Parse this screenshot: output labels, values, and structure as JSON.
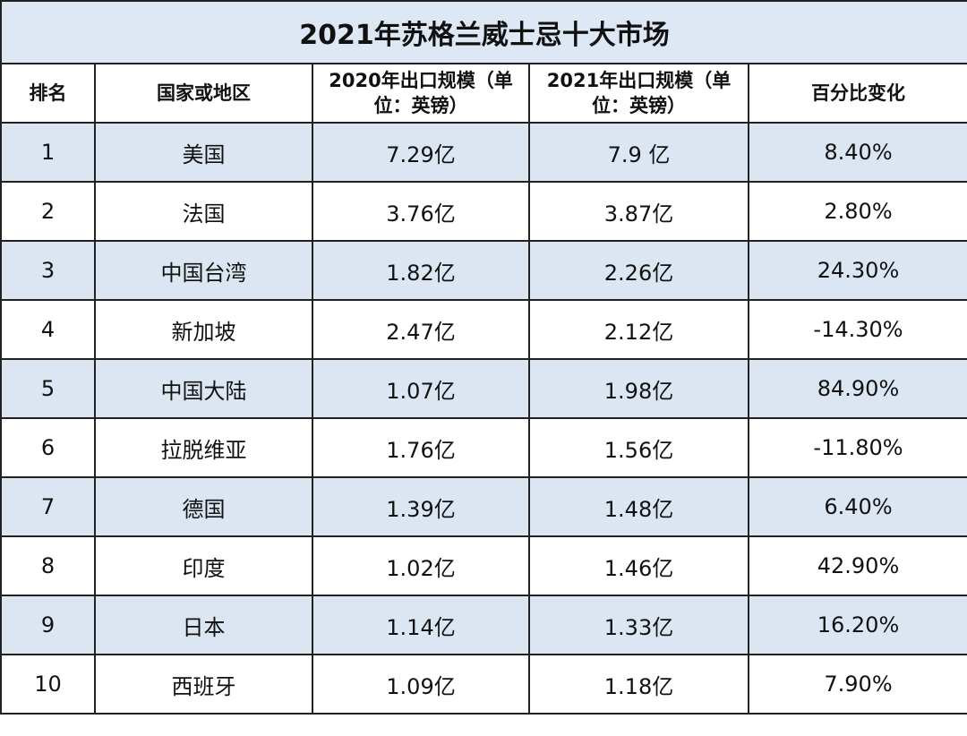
{
  "title": "2021年苏格兰威士忌十大市场",
  "table": {
    "header": [
      "排名",
      "国家或地区",
      "2020年出口规模（单位：英镑）",
      "2021年出口规模（单位：英镑）",
      "百分比变化"
    ],
    "rows": [
      [
        "1",
        "美国",
        "7.29亿",
        "7.9 亿",
        "8.40%"
      ],
      [
        "2",
        "法国",
        "3.76亿",
        "3.87亿",
        "2.80%"
      ],
      [
        "3",
        "中国台湾",
        "1.82亿",
        "2.26亿",
        "24.30%"
      ],
      [
        "4",
        "新加坡",
        "2.47亿",
        "2.12亿",
        "-14.30%"
      ],
      [
        "5",
        "中国大陆",
        "1.07亿",
        "1.98亿",
        "84.90%"
      ],
      [
        "6",
        "拉脱维亚",
        "1.76亿",
        "1.56亿",
        "-11.80%"
      ],
      [
        "7",
        "德国",
        "1.39亿",
        "1.48亿",
        "6.40%"
      ],
      [
        "8",
        "印度",
        "1.02亿",
        "1.46亿",
        "42.90%"
      ],
      [
        "9",
        "日本",
        "1.14亿",
        "1.33亿",
        "16.20%"
      ],
      [
        "10",
        "西班牙",
        "1.09亿",
        "1.18亿",
        "7.90%"
      ]
    ]
  }
}
